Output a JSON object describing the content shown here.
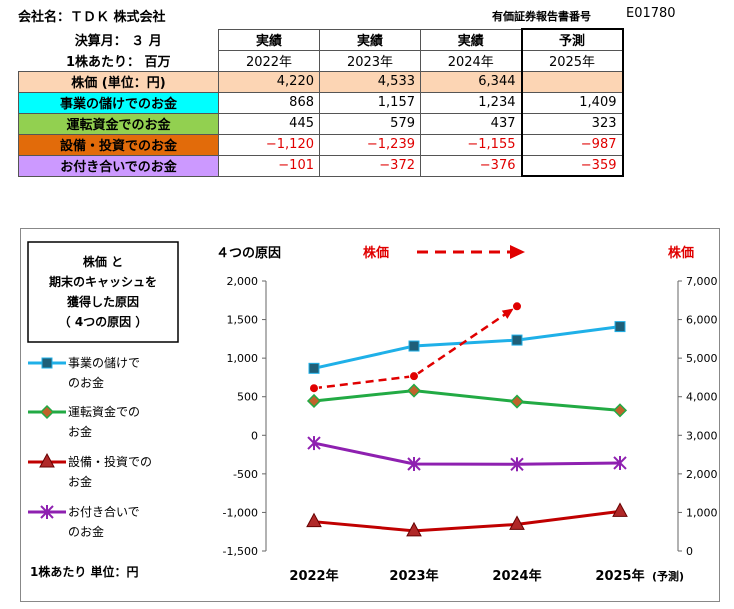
{
  "header": {
    "company": "会社名：ＴＤＫ 株式会社",
    "doc_code_label": "有価証券報告書番号",
    "doc_code": "E01780",
    "fiscal_month": "決算月： ３ 月",
    "per_share": "1株あたり： 百万"
  },
  "table": {
    "col_types": [
      "実績",
      "実績",
      "実績",
      "予測"
    ],
    "years": [
      "2022年",
      "2023年",
      "2024年",
      "2025年"
    ],
    "rows": [
      {
        "label": "株価 (単位：円)",
        "color": "#fcd5b4",
        "values": [
          "4,220",
          "4,533",
          "6,344",
          ""
        ]
      },
      {
        "label": "事業の儲けでのお金",
        "color": "#00ffff",
        "values": [
          "868",
          "1,157",
          "1,234",
          "1,409"
        ]
      },
      {
        "label": "運転資金でのお金",
        "color": "#92d050",
        "values": [
          "445",
          "579",
          "437",
          "323"
        ]
      },
      {
        "label": "設備・投資でのお金",
        "color": "#e26b0a",
        "values": [
          "−1,120",
          "−1,239",
          "−1,155",
          "−987"
        ]
      },
      {
        "label": "お付き合いでのお金",
        "color": "#cc99ff",
        "values": [
          "−101",
          "−372",
          "−376",
          "−359"
        ]
      }
    ]
  },
  "chart_data": {
    "type": "line",
    "title_box": [
      "株価 と",
      "期末のキャッシュを",
      "獲得した原因",
      "（ 4つの原因 ）"
    ],
    "left_title": "４つの原因",
    "stock_legend": "株価",
    "right_axis_title": "株価",
    "unit_note": "1株あたり  単位：円",
    "categories": [
      "2022年",
      "2023年",
      "2024年",
      "2025年"
    ],
    "forecast_note": "(予測)",
    "y_left": {
      "min": -1500,
      "max": 2000,
      "ticks": [
        "-1,500",
        "-1,000",
        "-500",
        "0",
        "500",
        "1,000",
        "1,500",
        "2,000"
      ]
    },
    "y_right": {
      "min": 0,
      "max": 7000,
      "ticks": [
        "0",
        "1,000",
        "2,000",
        "3,000",
        "4,000",
        "5,000",
        "6,000",
        "7,000"
      ]
    },
    "series": [
      {
        "name": "事業の儲けでのお金",
        "legend": [
          "事業の儲けで",
          "のお金"
        ],
        "values": [
          868,
          1157,
          1234,
          1409
        ],
        "color": "#1fb0e8",
        "marker": "square"
      },
      {
        "name": "運転資金でのお金",
        "legend": [
          "運転資金での",
          "お金"
        ],
        "values": [
          445,
          579,
          437,
          323
        ],
        "color": "#22aa44",
        "marker": "diamond"
      },
      {
        "name": "設備・投資でのお金",
        "legend": [
          "設備・投資での",
          "お金"
        ],
        "values": [
          -1120,
          -1239,
          -1155,
          -987
        ],
        "color": "#c00000",
        "marker": "triangle"
      },
      {
        "name": "お付き合いでのお金",
        "legend": [
          "お付き合いで",
          "のお金"
        ],
        "values": [
          -101,
          -372,
          -376,
          -359
        ],
        "color": "#8e20b0",
        "marker": "star"
      }
    ],
    "stock": {
      "name": "株価",
      "values": [
        4220,
        4533,
        6344
      ],
      "color": "#e00000"
    }
  }
}
